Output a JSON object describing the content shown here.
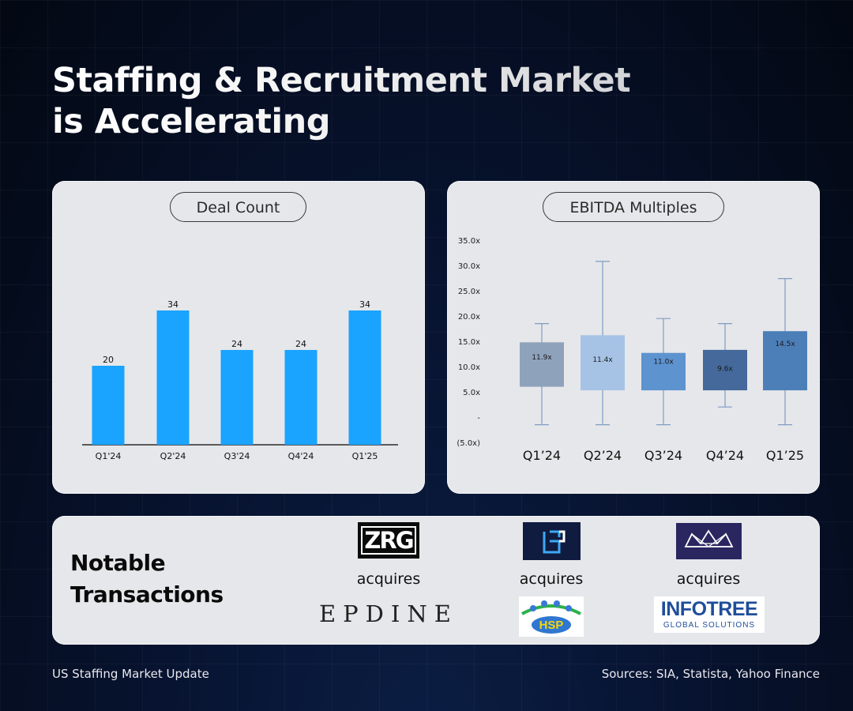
{
  "header": {
    "title_line1": "Staffing & Recruitment Market",
    "title_line2": "is Accelerating"
  },
  "chart_data": [
    {
      "type": "bar",
      "title": "Deal Count",
      "categories": [
        "Q1'24",
        "Q2'24",
        "Q3'24",
        "Q4'24",
        "Q1'25"
      ],
      "values": [
        20,
        34,
        24,
        24,
        34
      ],
      "data_labels": [
        "20",
        "34",
        "24",
        "24",
        "34"
      ],
      "ylim": [
        0,
        40
      ],
      "grid": false,
      "bar_color": "#1aa3ff"
    },
    {
      "type": "box",
      "title": "EBITDA Multiples",
      "categories": [
        "Q1’24",
        "Q2’24",
        "Q3’24",
        "Q4’24",
        "Q1’25"
      ],
      "y_ticks": [
        "35.0x",
        "30.0x",
        "25.0x",
        "20.0x",
        "15.0x",
        "10.0x",
        "5.0x",
        "-",
        "(5.0x)"
      ],
      "ylim": [
        -5,
        35
      ],
      "grid": false,
      "series": [
        {
          "label": "11.9x",
          "median": 11.9,
          "q1": 6.0,
          "q3": 14.8,
          "min": -1.5,
          "max": 18.5,
          "color": "#8fa2bb"
        },
        {
          "label": "11.4x",
          "median": 11.4,
          "q1": 5.3,
          "q3": 16.2,
          "min": -1.5,
          "max": 30.8,
          "color": "#a6c3e6"
        },
        {
          "label": "11.0x",
          "median": 11.0,
          "q1": 5.3,
          "q3": 12.7,
          "min": -1.5,
          "max": 19.5,
          "color": "#5d93cf"
        },
        {
          "label": "9.6x",
          "median": 9.6,
          "q1": 5.3,
          "q3": 13.3,
          "min": 2.0,
          "max": 18.5,
          "color": "#44699a"
        },
        {
          "label": "14.5x",
          "median": 14.5,
          "q1": 5.3,
          "q3": 17.0,
          "min": -1.5,
          "max": 27.4,
          "color": "#4c7fb8"
        }
      ]
    }
  ],
  "transactions": {
    "title_line1": "Notable",
    "title_line2": "Transactions",
    "deals": [
      {
        "acquirer": "ZRG",
        "verb": "acquires",
        "target": "EPDINE"
      },
      {
        "acquirer": "",
        "verb": "acquires",
        "target": "HSP"
      },
      {
        "acquirer": "",
        "verb": "acquires",
        "target": "INFOTREE"
      }
    ],
    "target3_tagline": "GLOBAL SOLUTIONS"
  },
  "colors": {
    "card_bg": "#e6e7ea",
    "deal_bar": "#1aa3ff",
    "logo_navy": "#0f1c3f",
    "logo_purple": "#2a2660"
  },
  "footer": {
    "left": "US Staffing Market Update",
    "right": "Sources: SIA, Statista, Yahoo Finance"
  }
}
